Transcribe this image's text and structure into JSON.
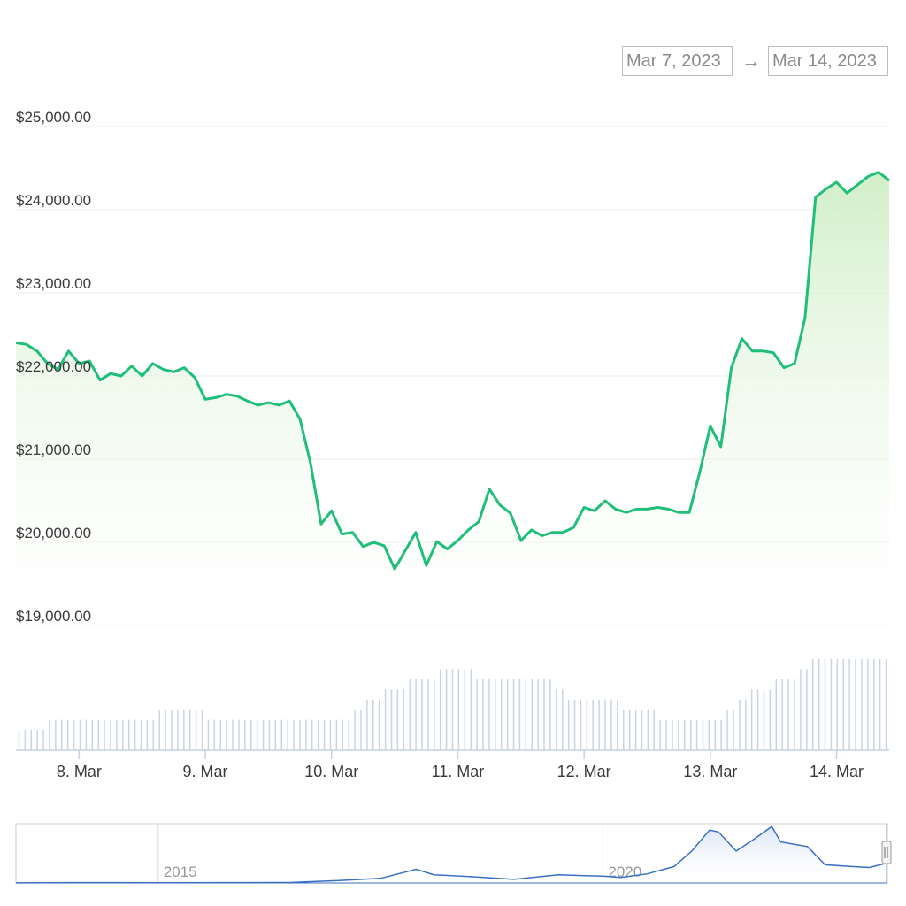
{
  "date_range": {
    "from": "Mar 7, 2023",
    "arrow": "→",
    "to": "Mar 14, 2023"
  },
  "colors": {
    "price_line": "#1fbf7a",
    "area_top": "#d4efcc",
    "volume_bar": "#c9d4e3",
    "navigator_line": "#3a6fc4",
    "grid": "#ececec"
  },
  "chart_data": [
    {
      "type": "area",
      "xlim": [
        "2023-03-07T12:00",
        "2023-03-14T10:00"
      ],
      "ylim": [
        19000,
        25000
      ],
      "yticks": [
        19000,
        20000,
        21000,
        22000,
        23000,
        24000,
        25000
      ],
      "ytick_labels": [
        "$19,000.00",
        "$20,000.00",
        "$21,000.00",
        "$22,000.00",
        "$23,000.00",
        "$24,000.00",
        "$25,000.00"
      ],
      "xtick_labels": [
        "8. Mar",
        "9. Mar",
        "10. Mar",
        "11. Mar",
        "12. Mar",
        "13. Mar",
        "14. Mar"
      ],
      "xtick_dates": [
        "2023-03-08",
        "2023-03-09",
        "2023-03-10",
        "2023-03-11",
        "2023-03-12",
        "2023-03-13",
        "2023-03-14"
      ],
      "series": [
        {
          "x": [
            "2023-03-07T12:00",
            "2023-03-07T14:00",
            "2023-03-07T16:00",
            "2023-03-07T18:00",
            "2023-03-07T20:00",
            "2023-03-07T22:00",
            "2023-03-08T00:00",
            "2023-03-08T02:00",
            "2023-03-08T04:00",
            "2023-03-08T06:00",
            "2023-03-08T08:00",
            "2023-03-08T10:00",
            "2023-03-08T12:00",
            "2023-03-08T14:00",
            "2023-03-08T16:00",
            "2023-03-08T18:00",
            "2023-03-08T20:00",
            "2023-03-08T22:00",
            "2023-03-09T00:00",
            "2023-03-09T02:00",
            "2023-03-09T04:00",
            "2023-03-09T06:00",
            "2023-03-09T08:00",
            "2023-03-09T10:00",
            "2023-03-09T12:00",
            "2023-03-09T14:00",
            "2023-03-09T16:00",
            "2023-03-09T18:00",
            "2023-03-09T20:00",
            "2023-03-09T22:00",
            "2023-03-10T00:00",
            "2023-03-10T02:00",
            "2023-03-10T04:00",
            "2023-03-10T06:00",
            "2023-03-10T08:00",
            "2023-03-10T10:00",
            "2023-03-10T12:00",
            "2023-03-10T14:00",
            "2023-03-10T16:00",
            "2023-03-10T18:00",
            "2023-03-10T20:00",
            "2023-03-10T22:00",
            "2023-03-11T00:00",
            "2023-03-11T02:00",
            "2023-03-11T04:00",
            "2023-03-11T06:00",
            "2023-03-11T08:00",
            "2023-03-11T10:00",
            "2023-03-11T12:00",
            "2023-03-11T14:00",
            "2023-03-11T16:00",
            "2023-03-11T18:00",
            "2023-03-11T20:00",
            "2023-03-11T22:00",
            "2023-03-12T00:00",
            "2023-03-12T02:00",
            "2023-03-12T04:00",
            "2023-03-12T06:00",
            "2023-03-12T08:00",
            "2023-03-12T10:00",
            "2023-03-12T12:00",
            "2023-03-12T14:00",
            "2023-03-12T16:00",
            "2023-03-12T18:00",
            "2023-03-12T20:00",
            "2023-03-12T22:00",
            "2023-03-13T00:00",
            "2023-03-13T02:00",
            "2023-03-13T04:00",
            "2023-03-13T06:00",
            "2023-03-13T08:00",
            "2023-03-13T10:00",
            "2023-03-13T12:00",
            "2023-03-13T14:00",
            "2023-03-13T16:00",
            "2023-03-13T18:00",
            "2023-03-13T20:00",
            "2023-03-13T22:00",
            "2023-03-14T00:00",
            "2023-03-14T02:00",
            "2023-03-14T04:00",
            "2023-03-14T06:00",
            "2023-03-14T08:00",
            "2023-03-14T10:00"
          ],
          "y": [
            22400,
            22380,
            22300,
            22150,
            22080,
            22300,
            22150,
            22180,
            21950,
            22030,
            22000,
            22120,
            22000,
            22150,
            22080,
            22050,
            22100,
            21980,
            21720,
            21740,
            21780,
            21760,
            21700,
            21650,
            21680,
            21650,
            21700,
            21480,
            20950,
            20220,
            20380,
            20100,
            20120,
            19950,
            20000,
            19960,
            19680,
            19900,
            20120,
            19720,
            20010,
            19920,
            20020,
            20150,
            20250,
            20640,
            20450,
            20350,
            20020,
            20150,
            20080,
            20120,
            20120,
            20180,
            20420,
            20380,
            20500,
            20400,
            20360,
            20400,
            20400,
            20420,
            20400,
            20360,
            20360,
            20850,
            21400,
            21150,
            22100,
            22450,
            22300,
            22300,
            22280,
            22100,
            22150,
            22700,
            24150,
            24250,
            24330,
            24200,
            24300,
            24400,
            24450,
            24350
          ]
        }
      ]
    },
    {
      "type": "bar",
      "note_series": "volume",
      "values": [
        2,
        2,
        2,
        2,
        2,
        3,
        3,
        3,
        3,
        3,
        3,
        3,
        3,
        3,
        3,
        3,
        3,
        3,
        3,
        3,
        3,
        3,
        3,
        4,
        4,
        4,
        4,
        4,
        4,
        4,
        4,
        3,
        3,
        3,
        3,
        3,
        3,
        3,
        3,
        3,
        3,
        3,
        3,
        3,
        3,
        3,
        3,
        3,
        3,
        3,
        3,
        3,
        3,
        3,
        3,
        4,
        4,
        5,
        5,
        5,
        6,
        6,
        6,
        6,
        7,
        7,
        7,
        7,
        7,
        8,
        8,
        8,
        8,
        8,
        8,
        7,
        7,
        7,
        7,
        7,
        7,
        7,
        7,
        7,
        7,
        7,
        7,
        7,
        6,
        6,
        5,
        5,
        5,
        5,
        5,
        5,
        5,
        5,
        5,
        4,
        4,
        4,
        4,
        4,
        4,
        3,
        3,
        3,
        3,
        3,
        3,
        3,
        3,
        3,
        3,
        3,
        4,
        4,
        5,
        5,
        6,
        6,
        6,
        6,
        7,
        7,
        7,
        7,
        8,
        8,
        9,
        9,
        9,
        9,
        9,
        9,
        9,
        9,
        9,
        9,
        9,
        9,
        9
      ]
    },
    {
      "type": "line",
      "xtick_labels": [
        "2015",
        "2020"
      ],
      "xtick_years": [
        2015,
        2020
      ],
      "xlim": [
        2013.4,
        2023.2
      ],
      "ylim": [
        0,
        65000
      ],
      "x": [
        2013.4,
        2014,
        2015,
        2016,
        2016.5,
        2017,
        2017.5,
        2017.9,
        2018.1,
        2018.5,
        2019,
        2019.5,
        2019.8,
        2020,
        2020.2,
        2020.5,
        2020.8,
        2021,
        2021.2,
        2021.3,
        2021.5,
        2021.7,
        2021.9,
        2022,
        2022.3,
        2022.5,
        2022.8,
        2023,
        2023.2
      ],
      "y": [
        100,
        400,
        300,
        400,
        600,
        2500,
        5000,
        15000,
        9000,
        7000,
        4000,
        9000,
        8000,
        7500,
        6000,
        10000,
        18000,
        35000,
        58000,
        56000,
        35000,
        48000,
        62000,
        45000,
        40000,
        20000,
        18000,
        17000,
        22000
      ]
    }
  ]
}
